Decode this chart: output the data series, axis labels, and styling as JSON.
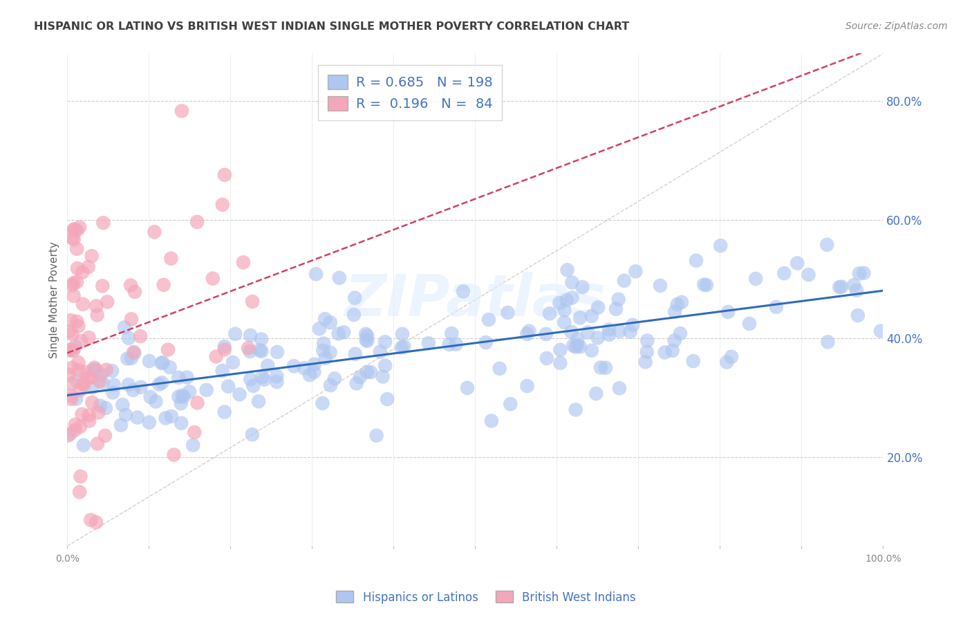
{
  "title": "HISPANIC OR LATINO VS BRITISH WEST INDIAN SINGLE MOTHER POVERTY CORRELATION CHART",
  "source": "Source: ZipAtlas.com",
  "ylabel": "Single Mother Poverty",
  "legend_entries": [
    {
      "label": "Hispanics or Latinos",
      "color": "#aec6f0",
      "R": 0.685,
      "N": 198
    },
    {
      "label": "British West Indians",
      "color": "#f4a7b9",
      "R": 0.196,
      "N": 84
    }
  ],
  "xlim": [
    0,
    1.0
  ],
  "ylim": [
    0.05,
    0.88
  ],
  "ytick_vals": [
    0.2,
    0.4,
    0.6,
    0.8
  ],
  "ytick_labels": [
    "20.0%",
    "40.0%",
    "60.0%",
    "80.0%"
  ],
  "xtick_vals": [
    0.0,
    0.1,
    0.2,
    0.3,
    0.4,
    0.5,
    0.6,
    0.7,
    0.8,
    0.9,
    1.0
  ],
  "xtick_labels": [
    "0.0%",
    "",
    "",
    "",
    "",
    "",
    "",
    "",
    "",
    "",
    "100.0%"
  ],
  "watermark": "ZIPatlas",
  "blue_scatter_color": "#aec6f0",
  "pink_scatter_color": "#f4a7b9",
  "blue_line_color": "#2e6bbf",
  "pink_line_color": "#d04060",
  "background_color": "#ffffff",
  "grid_color": "#cccccc",
  "title_color": "#404040",
  "axis_label_color": "#606060",
  "tick_color": "#888888",
  "right_ytick_color": "#4472c4"
}
